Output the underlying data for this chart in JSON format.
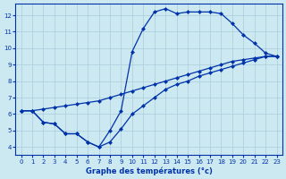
{
  "title": "Graphe des températures (°c)",
  "bg_color": "#cce8f0",
  "line_color": "#0033aa",
  "grid_color": "#aaccdd",
  "xlim": [
    -0.5,
    23.5
  ],
  "ylim": [
    3.5,
    12.7
  ],
  "xticks": [
    0,
    1,
    2,
    3,
    4,
    5,
    6,
    7,
    8,
    9,
    10,
    11,
    12,
    13,
    14,
    15,
    16,
    17,
    18,
    19,
    20,
    21,
    22,
    23
  ],
  "yticks": [
    4,
    5,
    6,
    7,
    8,
    9,
    10,
    11,
    12
  ],
  "line1_x": [
    0,
    1,
    2,
    3,
    4,
    5,
    6,
    7,
    8,
    9,
    10,
    11,
    12,
    13,
    14,
    15,
    16,
    17,
    18,
    19,
    20,
    21,
    22,
    23
  ],
  "line1_y": [
    6.2,
    6.2,
    5.5,
    5.4,
    4.8,
    4.8,
    4.3,
    4.0,
    5.0,
    6.2,
    9.8,
    11.2,
    12.2,
    12.4,
    12.1,
    12.2,
    12.2,
    12.2,
    12.1,
    11.5,
    10.8,
    10.3,
    9.7,
    9.5
  ],
  "line2_x": [
    0,
    1,
    2,
    3,
    4,
    5,
    6,
    7,
    8,
    9,
    10,
    11,
    12,
    13,
    14,
    15,
    16,
    17,
    18,
    19,
    20,
    21,
    22,
    23
  ],
  "line2_y": [
    6.2,
    6.2,
    5.5,
    5.4,
    4.8,
    4.8,
    4.3,
    4.0,
    4.3,
    5.1,
    6.0,
    6.5,
    7.0,
    7.5,
    7.8,
    8.0,
    8.3,
    8.5,
    8.7,
    8.9,
    9.1,
    9.3,
    9.5,
    9.5
  ],
  "line3_x": [
    0,
    1,
    2,
    3,
    4,
    5,
    6,
    7,
    8,
    9,
    10,
    11,
    12,
    13,
    14,
    15,
    16,
    17,
    18,
    19,
    20,
    21,
    22,
    23
  ],
  "line3_y": [
    6.2,
    6.2,
    6.3,
    6.4,
    6.5,
    6.6,
    6.7,
    6.8,
    7.0,
    7.2,
    7.4,
    7.6,
    7.8,
    8.0,
    8.2,
    8.4,
    8.6,
    8.8,
    9.0,
    9.2,
    9.3,
    9.4,
    9.5,
    9.5
  ],
  "marker": "D",
  "markersize": 2.5,
  "linewidth": 0.9
}
